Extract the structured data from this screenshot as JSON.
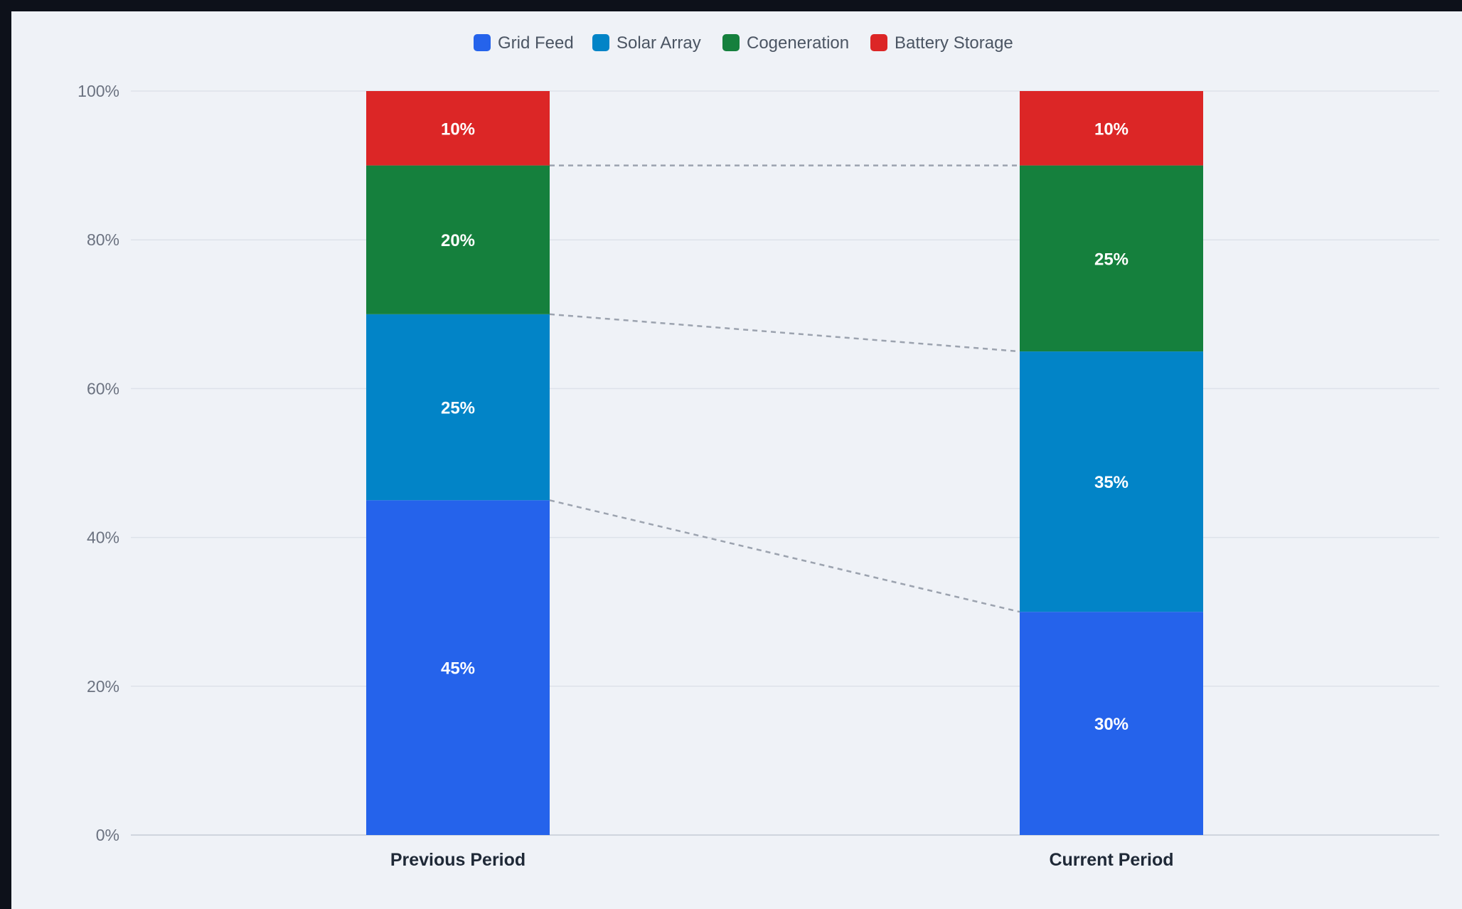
{
  "chart_data": {
    "type": "bar",
    "stacked": true,
    "categories": [
      "Previous Period",
      "Current Period"
    ],
    "series": [
      {
        "name": "Grid Feed",
        "color": "#2563eb",
        "values": [
          45,
          30
        ]
      },
      {
        "name": "Solar Array",
        "color": "#0284c7",
        "values": [
          25,
          35
        ]
      },
      {
        "name": "Cogeneration",
        "color": "#15803d",
        "values": [
          20,
          25
        ]
      },
      {
        "name": "Battery Storage",
        "color": "#dc2626",
        "values": [
          10,
          10
        ]
      }
    ],
    "ylim": [
      0,
      100
    ],
    "yticks": [
      0,
      20,
      40,
      60,
      80,
      100
    ],
    "ytick_suffix": "%",
    "value_suffix": "%",
    "grid": true,
    "legend": "top-center",
    "connector_lines": "dashed",
    "title": "",
    "xlabel": "",
    "ylabel": ""
  }
}
